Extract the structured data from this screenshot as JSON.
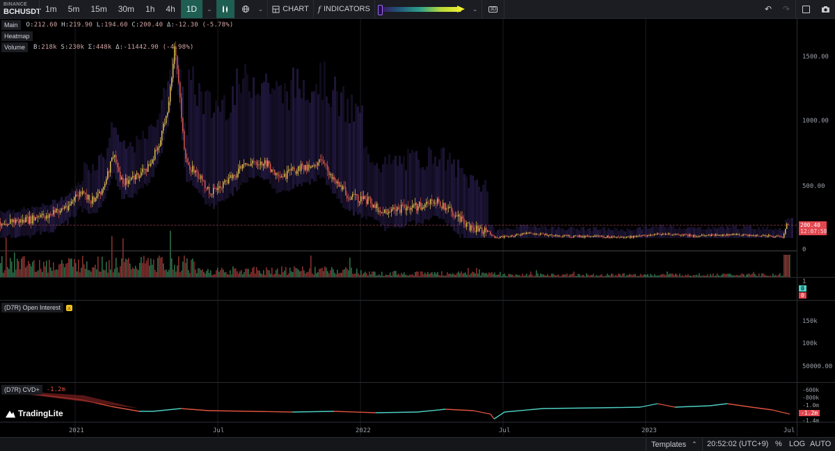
{
  "toolbar": {
    "exchange": "BINANCE",
    "symbol": "BCHUSDT",
    "timeframes": [
      "1m",
      "5m",
      "15m",
      "30m",
      "1h",
      "4h",
      "1D"
    ],
    "active_timeframe": "1D",
    "chart_label": "CHART",
    "indicators_label": "INDICATORS",
    "badge_3d": "3D"
  },
  "legend": {
    "main": {
      "tag": "Main",
      "o": "212.60",
      "h": "219.90",
      "l": "194.60",
      "c": "200.40",
      "delta": "-12.30",
      "pct": "(-5.78%)"
    },
    "heatmap": {
      "tag": "Heatmap"
    },
    "volume": {
      "tag": "Volume",
      "b": "218k",
      "s": "230k",
      "sigma": "448k",
      "delta": "-11442.90",
      "pct": "(-4.98%)"
    }
  },
  "price_axis": {
    "labels": [
      "1500.00",
      "1000.00",
      "500.00",
      "0"
    ]
  },
  "price_tag": {
    "price": "200.40",
    "countdown": "12:07:58"
  },
  "volume_axis": {
    "top": "1",
    "mid_a": "0",
    "mid_b": "0"
  },
  "oi": {
    "title": "(D7R) Open Interest",
    "warning": "⚠",
    "labels": [
      "150k",
      "100k",
      "50000.00"
    ]
  },
  "cvd": {
    "title": "(D7R) CVD+",
    "value": "-1.2m",
    "labels": [
      "-600k",
      "-800k",
      "-1.0m",
      "-1.2m",
      "-1.4m"
    ]
  },
  "x_axis": {
    "labels": [
      "2021",
      "Jul",
      "2022",
      "Jul",
      "2023",
      "Jul"
    ]
  },
  "logo": "TradingLite",
  "bottom": {
    "templates": "Templates",
    "time": "20:52:02 (UTC+9)",
    "percent": "%",
    "log": "LOG",
    "auto": "AUTO"
  },
  "colors": {
    "up": "#26a69a",
    "down": "#ef5350",
    "accent": "#1f5e52",
    "price_line": "#f0c040",
    "cvd_up": "#4fd1c5",
    "cvd_down": "#e0533e",
    "heatmap": "#3a2a6e"
  }
}
